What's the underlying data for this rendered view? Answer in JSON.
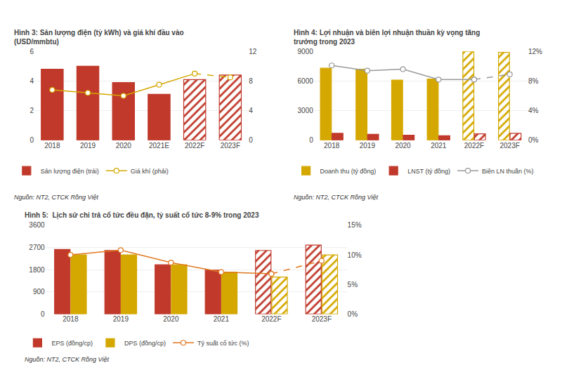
{
  "chart_data": [
    {
      "type": "bar",
      "title": "Hình 3: Sản lượng điện (tỷ kWh) và giá khí đầu vào\n(USD/mmbtu)",
      "categories": [
        "2018",
        "2019",
        "2020",
        "2021E",
        "2022F",
        "2023F"
      ],
      "series": [
        {
          "name": "Sản lượng điện (trái)",
          "type": "bar",
          "color": "#c0392b",
          "values": [
            4.8,
            5.0,
            3.9,
            3.1,
            4.1,
            4.4
          ]
        },
        {
          "name": "Giá khí (phải)",
          "type": "line",
          "axis": "y2",
          "color": "#d4a800",
          "marker": "circle",
          "values": [
            6.8,
            6.4,
            6.0,
            7.5,
            9.0,
            8.5
          ]
        }
      ],
      "ylim": [
        0,
        6
      ],
      "yticks": [
        0,
        2,
        4,
        6
      ],
      "y2lim": [
        0,
        12
      ],
      "y2ticks": [
        0,
        4,
        8,
        12
      ],
      "grid": true,
      "legend": "bottom",
      "annotations": [
        "Nguồn: NT2, CTCK Rồng Việt"
      ]
    },
    {
      "type": "bar",
      "title": "Hình 4: Lợi nhuận và biên lợi nhuận thuần kỳ vọng tăng\ntrưởng trong 2023",
      "categories": [
        "2018",
        "2019",
        "2020",
        "2021",
        "2022F",
        "2023F"
      ],
      "series": [
        {
          "name": "Doanh thu (tỷ đồng)",
          "type": "bar",
          "color": "#d4a800",
          "values": [
            7300,
            7200,
            6100,
            6200,
            9000,
            8900
          ]
        },
        {
          "name": "LNST (tỷ đồng)",
          "type": "bar",
          "color": "#c0392b",
          "values": [
            700,
            600,
            500,
            450,
            650,
            700
          ]
        },
        {
          "name": "Biên LN thuần (%)",
          "type": "line",
          "axis": "y2",
          "color": "#999999",
          "marker": "circle",
          "values": [
            0.101,
            0.094,
            0.096,
            0.082,
            0.082,
            0.089
          ]
        }
      ],
      "ylim": [
        0,
        9000
      ],
      "yticks": [
        0,
        3000,
        6000,
        9000
      ],
      "y2lim": [
        0,
        0.12
      ],
      "y2ticks": [
        {
          "value": 0,
          "label": "0%"
        },
        {
          "value": 0.04,
          "label": "4%"
        },
        {
          "value": 0.08,
          "label": "8%"
        },
        {
          "value": 0.12,
          "label": "12%"
        }
      ],
      "grid": true,
      "legend": "bottom",
      "annotations": [
        "Nguồn: NT2, CTCK Rồng Việt"
      ]
    },
    {
      "type": "bar",
      "title": "Hình 5:  Lịch sử chi trả cổ tức đều đặn, tỷ suất cổ tức 8-9% trong 2023",
      "categories": [
        "2018",
        "2019",
        "2020",
        "2021",
        "2022F",
        "2023F"
      ],
      "series": [
        {
          "name": "EPS (đồng/cp)",
          "type": "bar",
          "color": "#c0392b",
          "values": [
            2620,
            2580,
            2000,
            1780,
            2580,
            2800
          ]
        },
        {
          "name": "DPS (đồng/cp)",
          "type": "bar",
          "color": "#d4a800",
          "values": [
            2400,
            2400,
            2000,
            1700,
            1500,
            2400
          ]
        },
        {
          "name": "Tỷ suất cổ tức (%)",
          "type": "line",
          "axis": "y2",
          "color": "#e07820",
          "marker": "circle",
          "values": [
            0.1,
            0.108,
            0.087,
            0.071,
            0.068,
            0.09
          ]
        }
      ],
      "ylim": [
        0,
        3600
      ],
      "yticks": [
        0,
        900,
        1800,
        2700,
        3600
      ],
      "y2lim": [
        0,
        0.15
      ],
      "y2ticks": [
        {
          "value": 0,
          "label": "0%"
        },
        {
          "value": 0.05,
          "label": "5%"
        },
        {
          "value": 0.1,
          "label": "10%"
        },
        {
          "value": 0.15,
          "label": "15%"
        }
      ],
      "grid": true,
      "legend": "bottom",
      "annotations": [
        "Nguồn: NT2, CTCK Rồng Việt"
      ]
    }
  ]
}
